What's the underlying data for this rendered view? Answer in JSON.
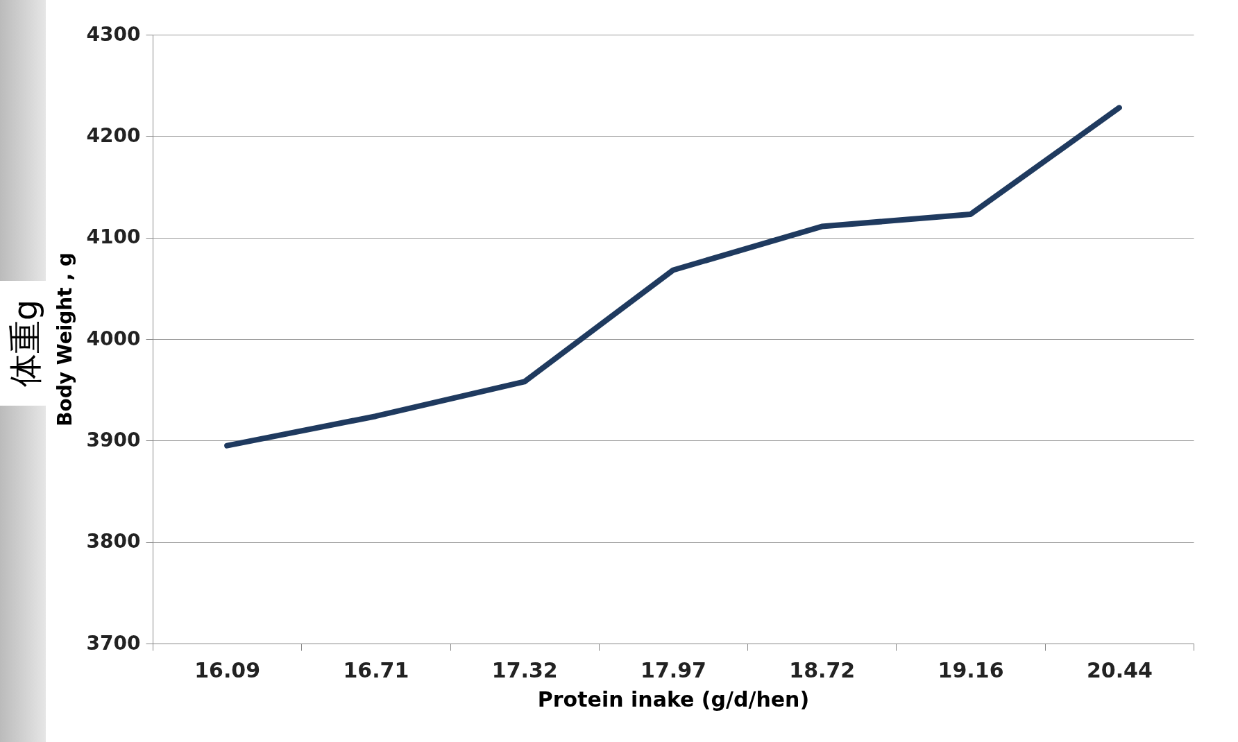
{
  "chart_data": {
    "type": "line",
    "xlabel": "Protein inake (g/d/hen)",
    "ylabel": "Body Weight , g",
    "annotations": [
      "体重g"
    ],
    "categories": [
      "16.09",
      "16.71",
      "17.32",
      "17.97",
      "18.72",
      "19.16",
      "20.44"
    ],
    "series": [
      {
        "color": "#1f3a5f",
        "values": [
          3895,
          3924,
          3958,
          4068,
          4111,
          4123,
          4228
        ]
      }
    ],
    "ylim": [
      3700,
      4300
    ],
    "yticks": [
      3700,
      3800,
      3900,
      4000,
      4100,
      4200,
      4300
    ],
    "grid": "y",
    "legend": false,
    "marker": "none",
    "line_style": "solid"
  }
}
